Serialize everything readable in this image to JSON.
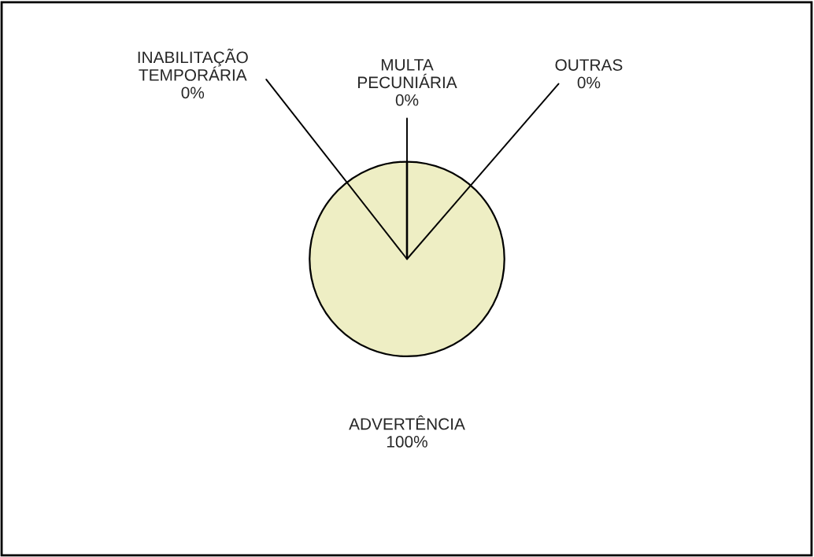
{
  "chart_data": {
    "type": "pie",
    "categories": [
      "ADVERTÊNCIA",
      "INABILITAÇÃO TEMPORÁRIA",
      "MULTA PECUNIÁRIA",
      "OUTRAS"
    ],
    "values": [
      100,
      0,
      0,
      0
    ],
    "colors": [
      "#eeeec4",
      "#9999cc",
      "#993366",
      "#ffffcc"
    ],
    "value_labels": [
      "100%",
      "0%",
      "0%",
      "0%"
    ],
    "legend": false
  }
}
